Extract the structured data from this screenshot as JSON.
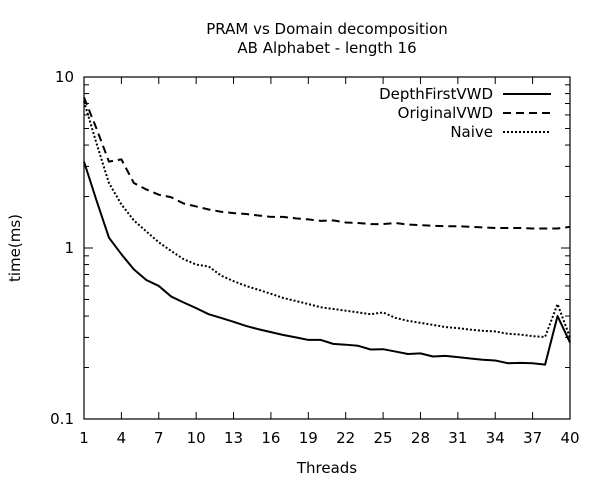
{
  "chart_data": {
    "type": "line",
    "title": "PRAM vs Domain decomposition",
    "subtitle": "AB Alphabet - length 16",
    "xlabel": "Threads",
    "ylabel": "time(ms)",
    "xlim": [
      1,
      40
    ],
    "ylim": [
      0.1,
      10
    ],
    "yscale": "log",
    "grid": false,
    "legend_position": "top-right",
    "x_ticks": [
      1,
      4,
      7,
      10,
      13,
      16,
      19,
      22,
      25,
      28,
      31,
      34,
      37,
      40
    ],
    "y_ticks": [
      {
        "value": 0.1,
        "label": "0.1"
      },
      {
        "value": 1,
        "label": "1"
      },
      {
        "value": 10,
        "label": "10"
      }
    ],
    "x": [
      1,
      2,
      3,
      4,
      5,
      6,
      7,
      8,
      9,
      10,
      11,
      12,
      13,
      14,
      15,
      16,
      17,
      18,
      19,
      20,
      21,
      22,
      23,
      24,
      25,
      26,
      27,
      28,
      29,
      30,
      31,
      32,
      33,
      34,
      35,
      36,
      37,
      38,
      39,
      40
    ],
    "series": [
      {
        "name": "DepthFirstVWD",
        "style": "solid",
        "values": [
          3.2,
          1.9,
          1.15,
          0.92,
          0.75,
          0.65,
          0.6,
          0.52,
          0.48,
          0.445,
          0.41,
          0.39,
          0.37,
          0.35,
          0.335,
          0.322,
          0.31,
          0.3,
          0.29,
          0.29,
          0.275,
          0.272,
          0.268,
          0.255,
          0.256,
          0.248,
          0.24,
          0.242,
          0.232,
          0.234,
          0.23,
          0.226,
          0.222,
          0.22,
          0.212,
          0.213,
          0.212,
          0.208,
          0.4,
          0.28
        ]
      },
      {
        "name": "OriginalVWD",
        "style": "dashed",
        "values": [
          7.6,
          5.0,
          3.2,
          3.3,
          2.4,
          2.2,
          2.05,
          1.98,
          1.82,
          1.75,
          1.68,
          1.63,
          1.6,
          1.58,
          1.55,
          1.52,
          1.52,
          1.49,
          1.47,
          1.44,
          1.45,
          1.41,
          1.4,
          1.38,
          1.38,
          1.4,
          1.37,
          1.36,
          1.35,
          1.34,
          1.34,
          1.33,
          1.32,
          1.31,
          1.31,
          1.31,
          1.3,
          1.3,
          1.3,
          1.33
        ]
      },
      {
        "name": "Naive",
        "style": "dotted",
        "values": [
          7.2,
          4.1,
          2.4,
          1.8,
          1.45,
          1.25,
          1.08,
          0.96,
          0.86,
          0.8,
          0.78,
          0.69,
          0.64,
          0.6,
          0.57,
          0.54,
          0.51,
          0.49,
          0.47,
          0.45,
          0.44,
          0.43,
          0.42,
          0.41,
          0.42,
          0.39,
          0.375,
          0.365,
          0.355,
          0.345,
          0.34,
          0.333,
          0.328,
          0.325,
          0.315,
          0.312,
          0.305,
          0.302,
          0.47,
          0.3
        ]
      }
    ]
  }
}
